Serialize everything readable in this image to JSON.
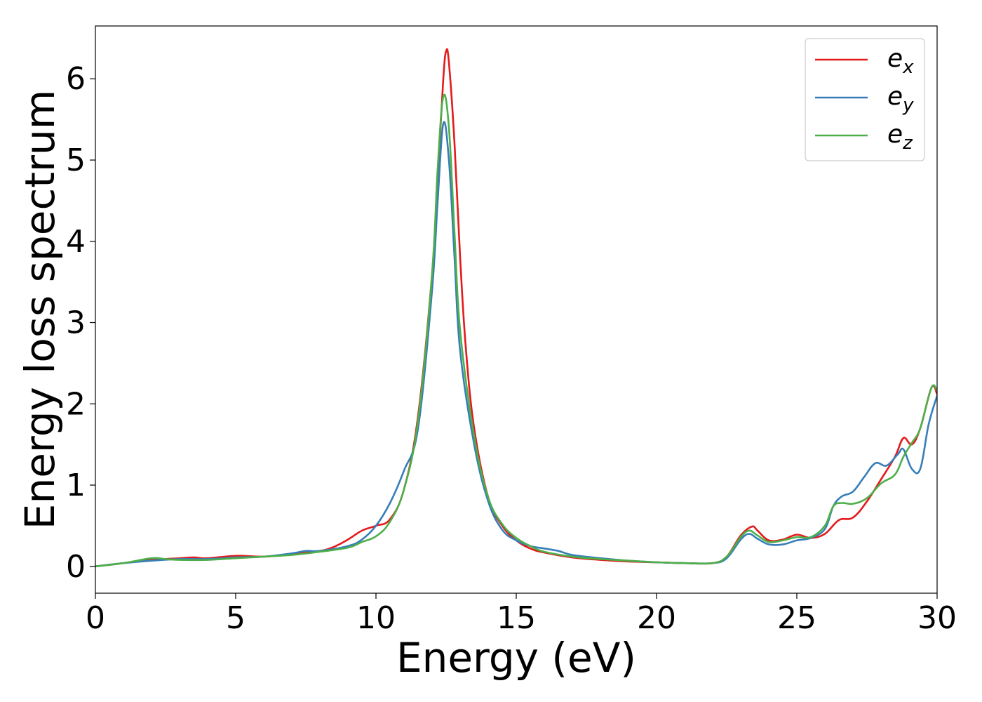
{
  "chart_data": {
    "type": "line",
    "title": "",
    "xlabel": "Energy (eV)",
    "ylabel": "Energy loss spectrum",
    "xlim": [
      0,
      30
    ],
    "ylim": [
      -0.33,
      6.65
    ],
    "xticks": [
      0,
      5,
      10,
      15,
      20,
      25,
      30
    ],
    "yticks": [
      0,
      1,
      2,
      3,
      4,
      5,
      6
    ],
    "grid": false,
    "legend_position": "top-right",
    "series": [
      {
        "name": "e_x",
        "label_base": "e",
        "label_sub": "x",
        "color": "#e41a1c",
        "x": [
          0,
          1,
          2,
          3,
          3.5,
          4,
          5,
          6,
          7,
          8,
          8.5,
          9,
          9.5,
          10,
          10.5,
          11,
          11.5,
          12,
          12.2,
          12.4,
          12.5,
          12.6,
          12.8,
          13,
          13.2,
          13.5,
          14,
          14.5,
          15,
          15.5,
          16,
          17,
          18,
          19,
          20,
          21,
          22,
          22.5,
          23,
          23.4,
          23.6,
          24,
          24.5,
          25,
          25.5,
          26,
          26.5,
          27,
          27.5,
          28,
          28.5,
          28.8,
          29.1,
          29.4,
          29.8,
          30
        ],
        "y": [
          0,
          0.04,
          0.08,
          0.1,
          0.11,
          0.1,
          0.13,
          0.12,
          0.15,
          0.19,
          0.24,
          0.33,
          0.44,
          0.5,
          0.58,
          0.95,
          1.85,
          3.6,
          4.8,
          6.0,
          6.34,
          6.2,
          5.2,
          3.8,
          2.7,
          1.7,
          0.85,
          0.5,
          0.32,
          0.22,
          0.17,
          0.11,
          0.08,
          0.06,
          0.05,
          0.04,
          0.04,
          0.12,
          0.38,
          0.49,
          0.44,
          0.32,
          0.33,
          0.39,
          0.35,
          0.4,
          0.57,
          0.6,
          0.8,
          1.07,
          1.35,
          1.58,
          1.5,
          1.7,
          2.2,
          2.12
        ]
      },
      {
        "name": "e_y",
        "label_base": "e",
        "label_sub": "y",
        "color": "#377eb8",
        "x": [
          0,
          1,
          2,
          3,
          4,
          5,
          6,
          7,
          7.5,
          8,
          9,
          9.5,
          10,
          10.5,
          11,
          11.5,
          12,
          12.2,
          12.4,
          12.6,
          12.8,
          13,
          13.5,
          14,
          14.5,
          15,
          15.5,
          16,
          16.5,
          17,
          18,
          19,
          20,
          21,
          22,
          22.5,
          23,
          23.3,
          23.6,
          24,
          24.5,
          25,
          25.5,
          26,
          26.3,
          26.6,
          27,
          27.4,
          27.8,
          28.2,
          28.6,
          28.8,
          29.1,
          29.4,
          29.7,
          30
        ],
        "y": [
          0,
          0.04,
          0.07,
          0.09,
          0.09,
          0.11,
          0.12,
          0.16,
          0.19,
          0.19,
          0.25,
          0.33,
          0.5,
          0.78,
          1.18,
          1.7,
          3.4,
          4.5,
          5.45,
          5.0,
          3.8,
          2.65,
          1.5,
          0.8,
          0.45,
          0.32,
          0.25,
          0.22,
          0.19,
          0.14,
          0.1,
          0.07,
          0.05,
          0.04,
          0.04,
          0.1,
          0.33,
          0.4,
          0.34,
          0.27,
          0.27,
          0.32,
          0.35,
          0.46,
          0.74,
          0.86,
          0.92,
          1.1,
          1.27,
          1.24,
          1.38,
          1.44,
          1.2,
          1.2,
          1.75,
          2.1
        ]
      },
      {
        "name": "e_z",
        "label_base": "e",
        "label_sub": "z",
        "color": "#4daf4a",
        "x": [
          0,
          1,
          2,
          2.5,
          3,
          4,
          5,
          6,
          7,
          8,
          9,
          9.5,
          10,
          10.5,
          11,
          11.5,
          12,
          12.2,
          12.4,
          12.6,
          12.8,
          13,
          13.5,
          14,
          14.5,
          15,
          15.5,
          16,
          17,
          18,
          19,
          20,
          21,
          22,
          22.5,
          23,
          23.3,
          23.6,
          24,
          24.5,
          25,
          25.5,
          26,
          26.3,
          26.6,
          27,
          27.5,
          28,
          28.5,
          28.8,
          29.1,
          29.4,
          29.8,
          30
        ],
        "y": [
          0,
          0.04,
          0.1,
          0.09,
          0.08,
          0.08,
          0.1,
          0.12,
          0.14,
          0.18,
          0.23,
          0.3,
          0.37,
          0.55,
          0.95,
          1.8,
          3.6,
          4.9,
          5.78,
          5.4,
          4.1,
          2.9,
          1.6,
          0.85,
          0.52,
          0.35,
          0.25,
          0.18,
          0.12,
          0.09,
          0.07,
          0.05,
          0.04,
          0.04,
          0.12,
          0.36,
          0.44,
          0.38,
          0.3,
          0.32,
          0.36,
          0.36,
          0.5,
          0.74,
          0.78,
          0.77,
          0.84,
          1.02,
          1.13,
          1.35,
          1.52,
          1.7,
          2.2,
          2.16
        ]
      }
    ]
  }
}
